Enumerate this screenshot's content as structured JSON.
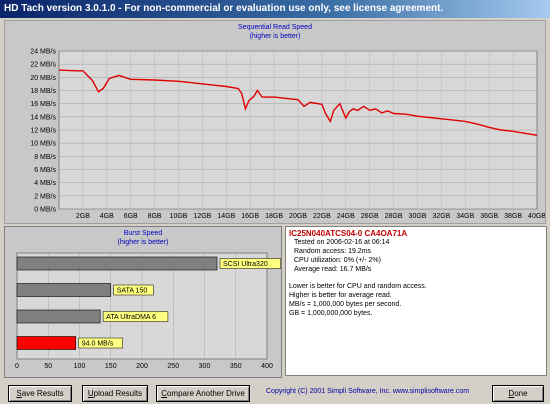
{
  "window": {
    "title": "HD Tach version 3.0.1.0  - For non-commercial or evaluation use only, see license agreement."
  },
  "read_chart": {
    "title": "Sequential Read Speed",
    "subtitle": "(higher is better)",
    "chart_data": {
      "type": "line",
      "title": "Sequential Read Speed",
      "subtitle": "(higher is better)",
      "xlabel": "",
      "ylabel": "",
      "y_tick_labels": [
        "0 MB/s",
        "2 MB/s",
        "4 MB/s",
        "6 MB/s",
        "8 MB/s",
        "10 MB/s",
        "12 MB/s",
        "14 MB/s",
        "16 MB/s",
        "18 MB/s",
        "20 MB/s",
        "22 MB/s",
        "24 MB/s"
      ],
      "x_tick_labels": [
        "2GB",
        "4GB",
        "6GB",
        "8GB",
        "10GB",
        "12GB",
        "14GB",
        "16GB",
        "18GB",
        "20GB",
        "22GB",
        "24GB",
        "26GB",
        "28GB",
        "30GB",
        "32GB",
        "34GB",
        "36GB",
        "38GB",
        "40GB"
      ],
      "ylim": [
        0,
        24
      ],
      "xlim": [
        0,
        40
      ],
      "grid": true,
      "series": [
        {
          "color": "#e00000",
          "x": [
            0,
            1.5,
            2,
            2.8,
            3.3,
            3.7,
            4.2,
            5,
            6,
            8,
            10,
            11,
            12,
            13,
            14,
            15,
            15.3,
            15.6,
            15.9,
            16.3,
            16.6,
            17,
            18,
            19,
            20,
            20.5,
            21,
            22,
            22.3,
            22.7,
            23,
            23.5,
            24,
            24.3,
            24.6,
            25,
            25.5,
            26,
            26.5,
            27,
            27.5,
            28,
            29,
            30,
            31,
            32,
            33,
            34,
            35,
            36,
            37,
            38,
            39,
            40
          ],
          "y": [
            21.1,
            21.0,
            21.0,
            19.5,
            17.8,
            18.3,
            19.8,
            20.3,
            19.7,
            19.6,
            19.4,
            19.2,
            19.0,
            18.8,
            18.6,
            18.3,
            17.5,
            15.2,
            16.5,
            17.1,
            18.0,
            17.0,
            17.0,
            16.8,
            16.6,
            15.6,
            16.2,
            15.9,
            14.5,
            13.3,
            15.0,
            16.0,
            13.8,
            14.8,
            15.2,
            15.0,
            15.6,
            15.0,
            15.2,
            14.6,
            14.9,
            14.5,
            14.4,
            14.1,
            13.9,
            13.7,
            13.5,
            13.3,
            12.9,
            12.4,
            12.0,
            11.8,
            11.5,
            11.2
          ]
        }
      ]
    }
  },
  "burst_chart": {
    "title": "Burst Speed",
    "subtitle": "(higher is better)",
    "chart_data": {
      "type": "bar",
      "title": "Burst Speed",
      "subtitle": "(higher is better)",
      "categories": [
        "SCSI Ultra320",
        "SATA 150",
        "ATA UltraDMA 6",
        "94.0 MB/s"
      ],
      "values": [
        320,
        150,
        133,
        94.0
      ],
      "colors": [
        "#808080",
        "#808080",
        "#808080",
        "#ff0000"
      ],
      "x_tick_labels": [
        "0",
        "50",
        "100",
        "150",
        "200",
        "250",
        "300",
        "350",
        "400"
      ],
      "xlim": [
        0,
        400
      ],
      "grid": true
    }
  },
  "info": {
    "model": "IC25N040ATCS04-0 CA4OA71A",
    "tested": "Tested on 2006-02-16 at 06:14",
    "random": "Random access: 19.2ms",
    "cpu": "CPU utilization: 0% (+/- 2%)",
    "average": "Average read: 16.7 MB/s",
    "note1": "Lower is better for CPU and random access.",
    "note2": "Higher is better for average read.",
    "note3": "MB/s = 1,000,000 bytes per second.",
    "note4": "GB = 1,000,000,000 bytes."
  },
  "buttons": {
    "save": {
      "hot": "S",
      "rest": "ave Results"
    },
    "upload": {
      "hot": "U",
      "rest": "pload Results"
    },
    "compare": {
      "hot": "C",
      "rest": "ompare Another Drive"
    },
    "done": {
      "hot": "D",
      "rest": "one"
    }
  },
  "footer": {
    "copyright": "Copyright (C) 2001 Simpli Software, Inc. www.simplisoftware.com"
  }
}
